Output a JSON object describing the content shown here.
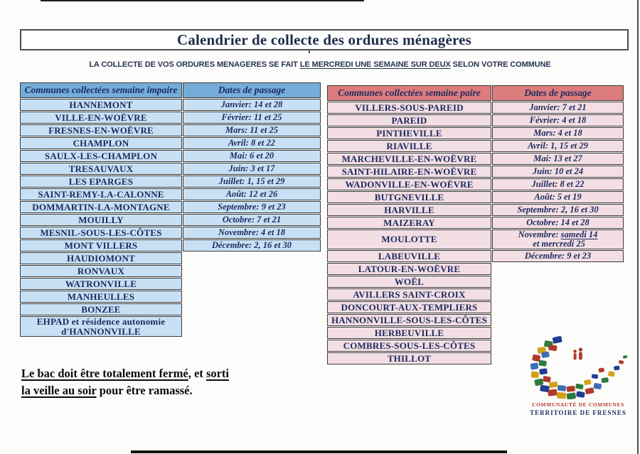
{
  "title": "Calendrier de collecte des ordures ménagères",
  "subtitle": {
    "segments": [
      {
        "t": "LA COLLECTE DE VOS ORDURES MENAGERES SE FAIT ",
        "u": false
      },
      {
        "t": "LE MERCREDI UNE SEMAINE SUR DEUX",
        "u": true
      },
      {
        "t": " SELON VOTRE COMMUNE",
        "u": false
      }
    ]
  },
  "tables": [
    {
      "key": "impaire",
      "header_communes": "Communes collectées semaine impaire",
      "header_dates": "Dates de passage",
      "colors": {
        "header_bg": "#74add9",
        "row_bg": "#c8e0f4",
        "text": "#1b2a5e",
        "border": "#3b3b3b"
      },
      "rows": [
        {
          "commune": "HANNEMONT",
          "date": "Janvier: 14 et 28"
        },
        {
          "commune": "VILLE-EN-WOËVRE",
          "date": "Février: 11 et 25"
        },
        {
          "commune": "FRESNES-EN-WOËVRE",
          "date": "Mars: 11 et 25"
        },
        {
          "commune": "CHAMPLON",
          "date": "Avril: 8 et 22"
        },
        {
          "commune": "SAULX-LES-CHAMPLON",
          "date": "Mai: 6 et 20"
        },
        {
          "commune": "TRESAUVAUX",
          "date": "Juin: 3 et 17"
        },
        {
          "commune": "LES EPARGES",
          "date": "Juillet: 1, 15 et 29"
        },
        {
          "commune": "SAINT-REMY-LA-CALONNE",
          "date": "Août: 12 et 26"
        },
        {
          "commune": "DOMMARTIN-LA-MONTAGNE",
          "date": "Septembre: 9 et 23"
        },
        {
          "commune": "MOUILLY",
          "date": "Octobre: 7 et 21"
        },
        {
          "commune": "MESNIL-SOUS-LES-CÔTES",
          "date": "Novembre: 4 et 18"
        },
        {
          "commune": "MONT VILLERS",
          "date": "Décembre: 2, 16 et 30"
        },
        {
          "commune": "HAUDIOMONT"
        },
        {
          "commune": "RONVAUX"
        },
        {
          "commune": "WATRONVILLE"
        },
        {
          "commune": "MANHEULLES"
        },
        {
          "commune": "BONZEE"
        },
        {
          "commune": "EHPAD et résidence autonomie d'HANNONVILLE"
        }
      ]
    },
    {
      "key": "paire",
      "header_communes": "Communes collectées semaine paire",
      "header_dates": "Dates de passage",
      "colors": {
        "header_bg": "#dd7c7c",
        "row_bg": "#f2dee3",
        "text": "#1b2a5e",
        "border": "#3b3b3b"
      },
      "rows": [
        {
          "commune": "VILLERS-SOUS-PAREID",
          "date": "Janvier: 7 et 21"
        },
        {
          "commune": "PAREID",
          "date": "Février: 4 et 18"
        },
        {
          "commune": "PINTHEVILLE",
          "date": "Mars: 4 et 18"
        },
        {
          "commune": "RIAVILLE",
          "date": "Avril: 1, 15 et 29"
        },
        {
          "commune": "MARCHEVILLE-EN-WOËVRE",
          "date": "Mai: 13 et 27"
        },
        {
          "commune": "SAINT-HILAIRE-EN-WOËVRE",
          "date": "Juin: 10 et 24"
        },
        {
          "commune": "WADONVILLE-EN-WOËVRE",
          "date": "Juillet: 8 et 22"
        },
        {
          "commune": "BUTGNEVILLE",
          "date": "Août: 5 et 19"
        },
        {
          "commune": "HARVILLE",
          "date": "Septembre: 2, 16 et 30"
        },
        {
          "commune": "MAIZERAY",
          "date": "Octobre: 14 et 28"
        },
        {
          "commune": "MOULOTTE",
          "date": [
            {
              "t": "Novembre: ",
              "u": false
            },
            {
              "t": "samedi 14",
              "u": true
            },
            {
              "t": " et mercredi 25",
              "u": false
            }
          ]
        },
        {
          "commune": "LABEUVILLE",
          "date": "Décembre: 9 et  23"
        },
        {
          "commune": "LATOUR-EN-WOËVRE"
        },
        {
          "commune": "WOËL"
        },
        {
          "commune": "AVILLERS SAINT-CROIX"
        },
        {
          "commune": "DONCOURT-AUX-TEMPLIERS"
        },
        {
          "commune": "HANNONVILLE-SOUS-LES-CÔTES"
        },
        {
          "commune": "HERBEUVILLE"
        },
        {
          "commune": "COMBRES-SOUS-LES-CÔTES"
        },
        {
          "commune": "THILLOT"
        }
      ]
    }
  ],
  "note": {
    "lines": [
      [
        {
          "t": "Le bac doit être totalement fermé",
          "u": true
        },
        {
          "t": ", et ",
          "u": false
        },
        {
          "t": "sorti ",
          "u": true
        }
      ],
      [
        {
          "t": "la veille au soir",
          "u": true
        },
        {
          "t": " pour être ramassé.",
          "u": false
        }
      ]
    ]
  },
  "footer": {
    "line1": "COMMUNAUTÉ DE COMMUNES",
    "line2": "TERRITOIRE DE FRESNES",
    "colors": {
      "line1": "#b23b2a",
      "line2": "#1c2b5e"
    }
  }
}
